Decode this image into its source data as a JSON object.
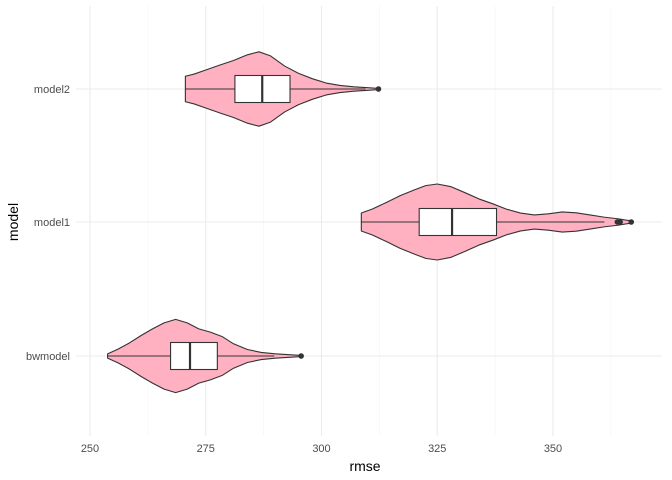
{
  "chart_data": {
    "type": "violin",
    "xlabel": "rmse",
    "ylabel": "model",
    "xlim": [
      248,
      369
    ],
    "x_ticks": [
      250,
      275,
      300,
      325,
      350
    ],
    "categories": [
      "model2",
      "model1",
      "bwmodel"
    ],
    "grid": true,
    "fill_color": "#ffb0c1",
    "box_fill": "#ffffff",
    "line_color": "#333333",
    "series": [
      {
        "category": "model2",
        "box": {
          "q1": 281.3,
          "median": 287.2,
          "q3": 293.2,
          "whisker_low": 270.6,
          "whisker_high": 309.5
        },
        "outliers": [
          312.3
        ],
        "density": [
          [
            270.6,
            0.47
          ],
          [
            272.5,
            0.55
          ],
          [
            275.0,
            0.7
          ],
          [
            278.0,
            0.88
          ],
          [
            281.0,
            1.05
          ],
          [
            284.0,
            1.26
          ],
          [
            286.5,
            1.37
          ],
          [
            289.0,
            1.22
          ],
          [
            292.0,
            0.85
          ],
          [
            295.0,
            0.58
          ],
          [
            298.0,
            0.38
          ],
          [
            301.0,
            0.22
          ],
          [
            304.0,
            0.13
          ],
          [
            307.0,
            0.08
          ],
          [
            310.0,
            0.05
          ],
          [
            312.3,
            0.02
          ]
        ]
      },
      {
        "category": "model1",
        "box": {
          "q1": 321.1,
          "median": 328.2,
          "q3": 337.8,
          "whisker_low": 308.6,
          "whisker_high": 361.1
        },
        "outliers": [
          363.9,
          364.5,
          366.9
        ],
        "density": [
          [
            308.6,
            0.33
          ],
          [
            311.0,
            0.48
          ],
          [
            314.0,
            0.72
          ],
          [
            317.0,
            0.97
          ],
          [
            320.0,
            1.18
          ],
          [
            322.5,
            1.34
          ],
          [
            325.0,
            1.4
          ],
          [
            328.0,
            1.3
          ],
          [
            331.0,
            1.08
          ],
          [
            334.0,
            0.85
          ],
          [
            337.0,
            0.67
          ],
          [
            340.0,
            0.47
          ],
          [
            343.0,
            0.33
          ],
          [
            346.0,
            0.26
          ],
          [
            349.0,
            0.3
          ],
          [
            352.0,
            0.37
          ],
          [
            355.0,
            0.34
          ],
          [
            358.0,
            0.26
          ],
          [
            361.0,
            0.18
          ],
          [
            364.0,
            0.12
          ],
          [
            366.9,
            0.04
          ]
        ]
      },
      {
        "category": "bwmodel",
        "box": {
          "q1": 267.4,
          "median": 271.6,
          "q3": 277.5,
          "whisker_low": 253.8,
          "whisker_high": 289.8
        },
        "outliers": [
          295.6
        ],
        "density": [
          [
            253.8,
            0.08
          ],
          [
            256.0,
            0.25
          ],
          [
            258.5,
            0.48
          ],
          [
            261.0,
            0.75
          ],
          [
            263.5,
            1.0
          ],
          [
            266.0,
            1.22
          ],
          [
            268.5,
            1.35
          ],
          [
            271.0,
            1.22
          ],
          [
            273.5,
            1.0
          ],
          [
            276.0,
            0.88
          ],
          [
            278.5,
            0.72
          ],
          [
            281.0,
            0.45
          ],
          [
            284.0,
            0.24
          ],
          [
            287.0,
            0.13
          ],
          [
            290.0,
            0.08
          ],
          [
            293.0,
            0.05
          ],
          [
            295.6,
            0.02
          ]
        ]
      }
    ]
  }
}
